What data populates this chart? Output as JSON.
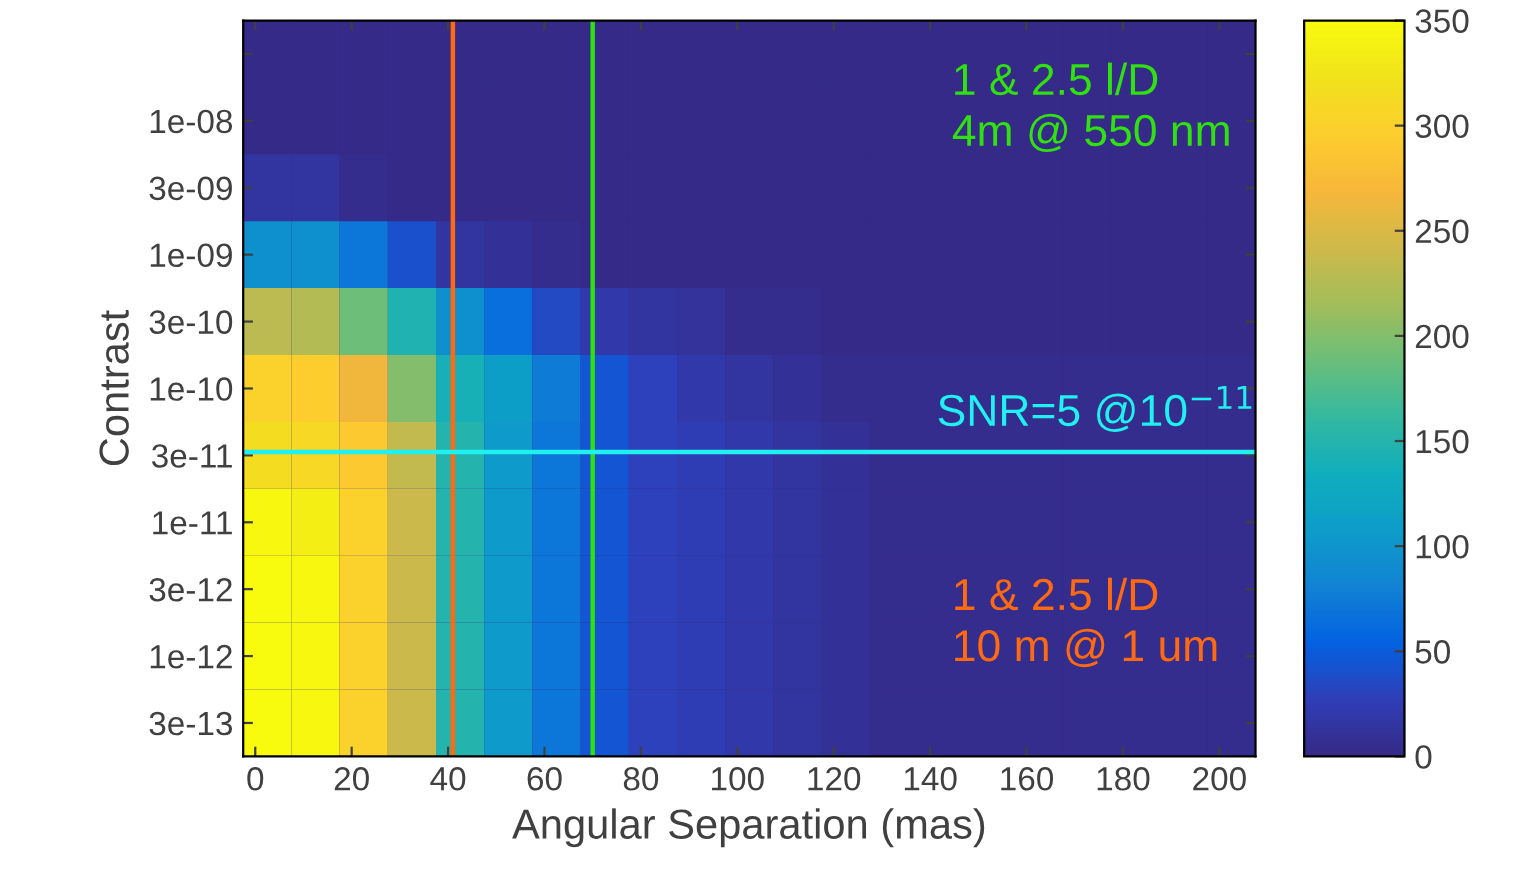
{
  "chart_data": {
    "type": "heatmap",
    "xlabel": "Angular Separation (mas)",
    "ylabel": "Contrast",
    "x": [
      2.5,
      12.5,
      22.5,
      32.5,
      42.5,
      52.5,
      62.5,
      72.5,
      82.5,
      92.5,
      102.5,
      112.5,
      122.5,
      132.5,
      142.5,
      152.5,
      162.5,
      172.5,
      182.5,
      192.5,
      202.5
    ],
    "xlim": [
      -2.5,
      207.5
    ],
    "xticks": [
      0,
      20,
      40,
      60,
      80,
      100,
      120,
      140,
      160,
      180,
      200
    ],
    "y_categories": [
      null,
      "1e-08",
      "3e-09",
      "1e-09",
      "3e-10",
      "1e-10",
      "3e-11",
      "1e-11",
      "3e-12",
      "1e-12",
      "3e-13"
    ],
    "cells": [
      [
        0,
        0,
        0,
        0,
        0,
        0,
        0,
        0,
        0,
        0,
        0,
        0,
        0,
        0,
        0,
        0,
        0,
        0,
        0,
        0,
        0
      ],
      [
        0,
        0,
        0,
        0,
        0,
        0,
        0,
        0,
        0,
        0,
        0,
        0,
        0,
        0,
        0,
        0,
        0,
        0,
        0,
        0,
        0
      ],
      [
        15,
        15,
        5,
        0,
        0,
        0,
        0,
        0,
        0,
        0,
        0,
        0,
        0,
        0,
        0,
        0,
        0,
        0,
        0,
        0,
        0
      ],
      [
        95,
        95,
        70,
        40,
        15,
        10,
        5,
        0,
        0,
        0,
        0,
        0,
        0,
        0,
        0,
        0,
        0,
        0,
        0,
        0,
        0
      ],
      [
        230,
        225,
        190,
        145,
        95,
        65,
        35,
        20,
        15,
        12,
        5,
        5,
        0,
        0,
        0,
        0,
        0,
        0,
        0,
        0,
        0
      ],
      [
        300,
        295,
        265,
        200,
        140,
        110,
        75,
        45,
        30,
        20,
        15,
        10,
        5,
        5,
        5,
        5,
        5,
        5,
        5,
        5,
        5
      ],
      [
        315,
        310,
        290,
        235,
        150,
        105,
        70,
        45,
        30,
        25,
        20,
        15,
        10,
        5,
        5,
        5,
        5,
        5,
        5,
        5,
        5
      ],
      [
        345,
        335,
        300,
        240,
        150,
        105,
        70,
        45,
        30,
        25,
        20,
        15,
        10,
        5,
        5,
        5,
        5,
        5,
        5,
        5,
        5
      ],
      [
        350,
        345,
        300,
        240,
        150,
        105,
        70,
        45,
        30,
        25,
        20,
        15,
        10,
        5,
        5,
        5,
        5,
        5,
        5,
        5,
        5
      ],
      [
        350,
        345,
        300,
        240,
        150,
        105,
        70,
        45,
        30,
        25,
        20,
        15,
        10,
        5,
        5,
        5,
        5,
        5,
        5,
        5,
        5
      ],
      [
        350,
        345,
        300,
        240,
        150,
        105,
        70,
        45,
        30,
        25,
        20,
        15,
        10,
        5,
        5,
        5,
        5,
        5,
        5,
        5,
        5
      ]
    ],
    "clim": [
      0,
      350
    ],
    "cticks": [
      0,
      50,
      100,
      150,
      200,
      250,
      300,
      350
    ],
    "ref_lines": [
      {
        "axis": "x",
        "value": 41,
        "color": "#ff6a10",
        "label": "1 & 2.5 l/D\n10 m @ 1 um"
      },
      {
        "axis": "x",
        "value": 70,
        "color": "#30e010",
        "label": "1 & 2.5 l/D\n4m @ 550 nm"
      },
      {
        "axis": "y",
        "value": "3e-11",
        "color": "#20f0f0",
        "label": "SNR=5 @10$^{−11}$"
      }
    ]
  }
}
